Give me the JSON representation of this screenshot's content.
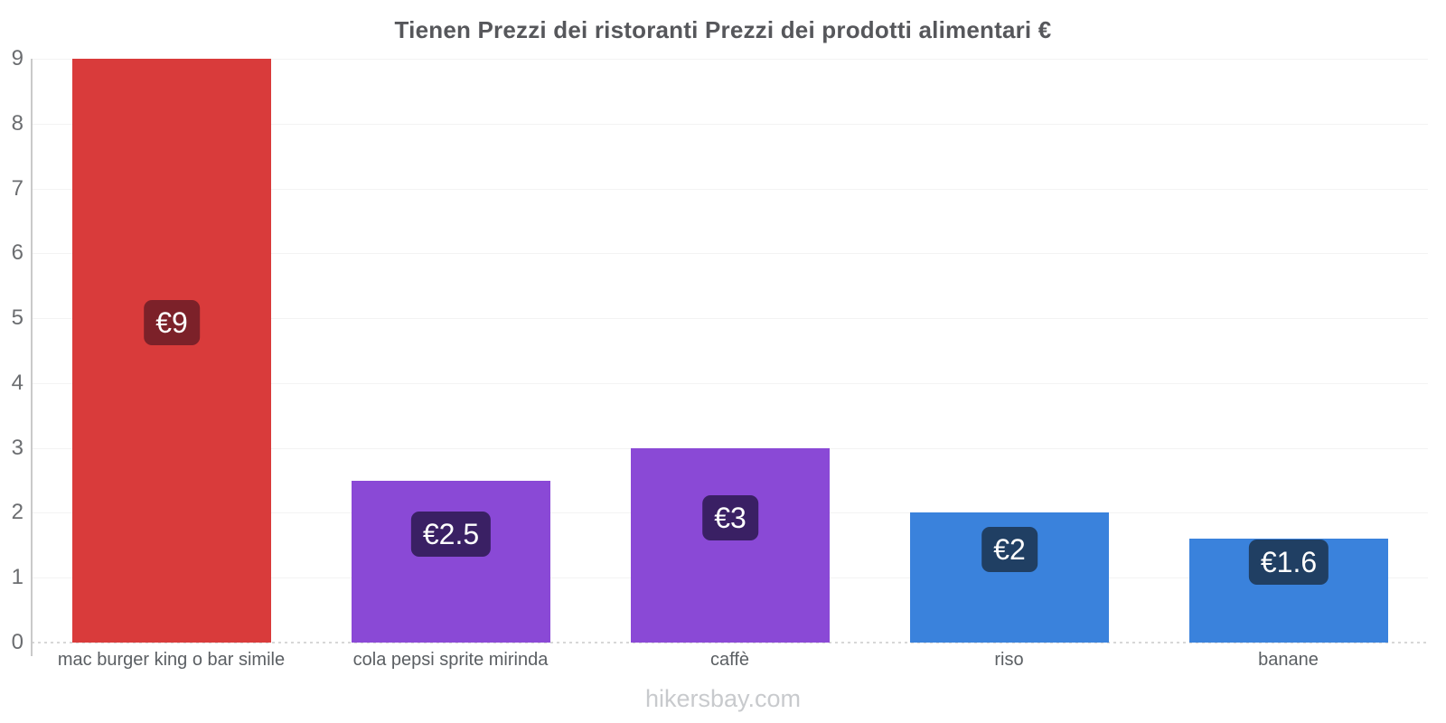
{
  "chart_data": {
    "type": "bar",
    "title": "Tienen Prezzi dei ristoranti Prezzi dei prodotti alimentari €",
    "categories": [
      "mac burger king o bar simile",
      "cola pepsi sprite mirinda",
      "caffè",
      "riso",
      "banane"
    ],
    "values": [
      9,
      2.5,
      3,
      2,
      1.6
    ],
    "value_labels": [
      "€9",
      "€2.5",
      "€3",
      "€2",
      "€1.6"
    ],
    "bar_colors": [
      "#d93b3b",
      "#8a49d6",
      "#8a49d6",
      "#3a82dc",
      "#3a82dc"
    ],
    "label_box_colors": [
      "#7c2129",
      "#3a2064",
      "#3a2064",
      "#203f63",
      "#203f63"
    ],
    "ylim": [
      0,
      9
    ],
    "yticks": [
      0,
      1,
      2,
      3,
      4,
      5,
      6,
      7,
      8,
      9
    ],
    "grid": true,
    "legend": "none",
    "xlabel": "",
    "ylabel": "",
    "currency": "€"
  },
  "footer": {
    "text": "hikersbay.com"
  }
}
